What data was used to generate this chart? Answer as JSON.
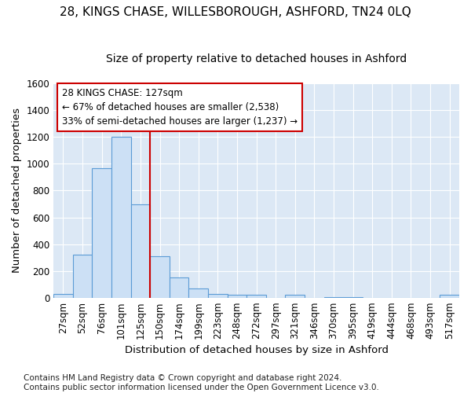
{
  "title1": "28, KINGS CHASE, WILLESBOROUGH, ASHFORD, TN24 0LQ",
  "title2": "Size of property relative to detached houses in Ashford",
  "xlabel": "Distribution of detached houses by size in Ashford",
  "ylabel": "Number of detached properties",
  "footnote": "Contains HM Land Registry data © Crown copyright and database right 2024.\nContains public sector information licensed under the Open Government Licence v3.0.",
  "bar_labels": [
    "27sqm",
    "52sqm",
    "76sqm",
    "101sqm",
    "125sqm",
    "150sqm",
    "174sqm",
    "199sqm",
    "223sqm",
    "248sqm",
    "272sqm",
    "297sqm",
    "321sqm",
    "346sqm",
    "370sqm",
    "395sqm",
    "419sqm",
    "444sqm",
    "468sqm",
    "493sqm",
    "517sqm"
  ],
  "bar_values": [
    30,
    320,
    970,
    1200,
    700,
    310,
    150,
    70,
    30,
    20,
    20,
    0,
    20,
    0,
    5,
    5,
    0,
    0,
    0,
    0,
    20
  ],
  "bar_color": "#cce0f5",
  "bar_edge_color": "#5b9bd5",
  "vline_x": 4.5,
  "vline_color": "#cc0000",
  "annotation_text": "28 KINGS CHASE: 127sqm\n← 67% of detached houses are smaller (2,538)\n33% of semi-detached houses are larger (1,237) →",
  "annotation_box_color": "#ffffff",
  "annotation_box_edge": "#cc0000",
  "ylim": [
    0,
    1600
  ],
  "yticks": [
    0,
    200,
    400,
    600,
    800,
    1000,
    1200,
    1400,
    1600
  ],
  "bg_color": "#dce8f5",
  "grid_color": "#ffffff",
  "fig_bg_color": "#ffffff",
  "title1_fontsize": 11,
  "title2_fontsize": 10,
  "axis_label_fontsize": 9.5,
  "tick_fontsize": 8.5,
  "footnote_fontsize": 7.5,
  "annotation_fontsize": 8.5
}
